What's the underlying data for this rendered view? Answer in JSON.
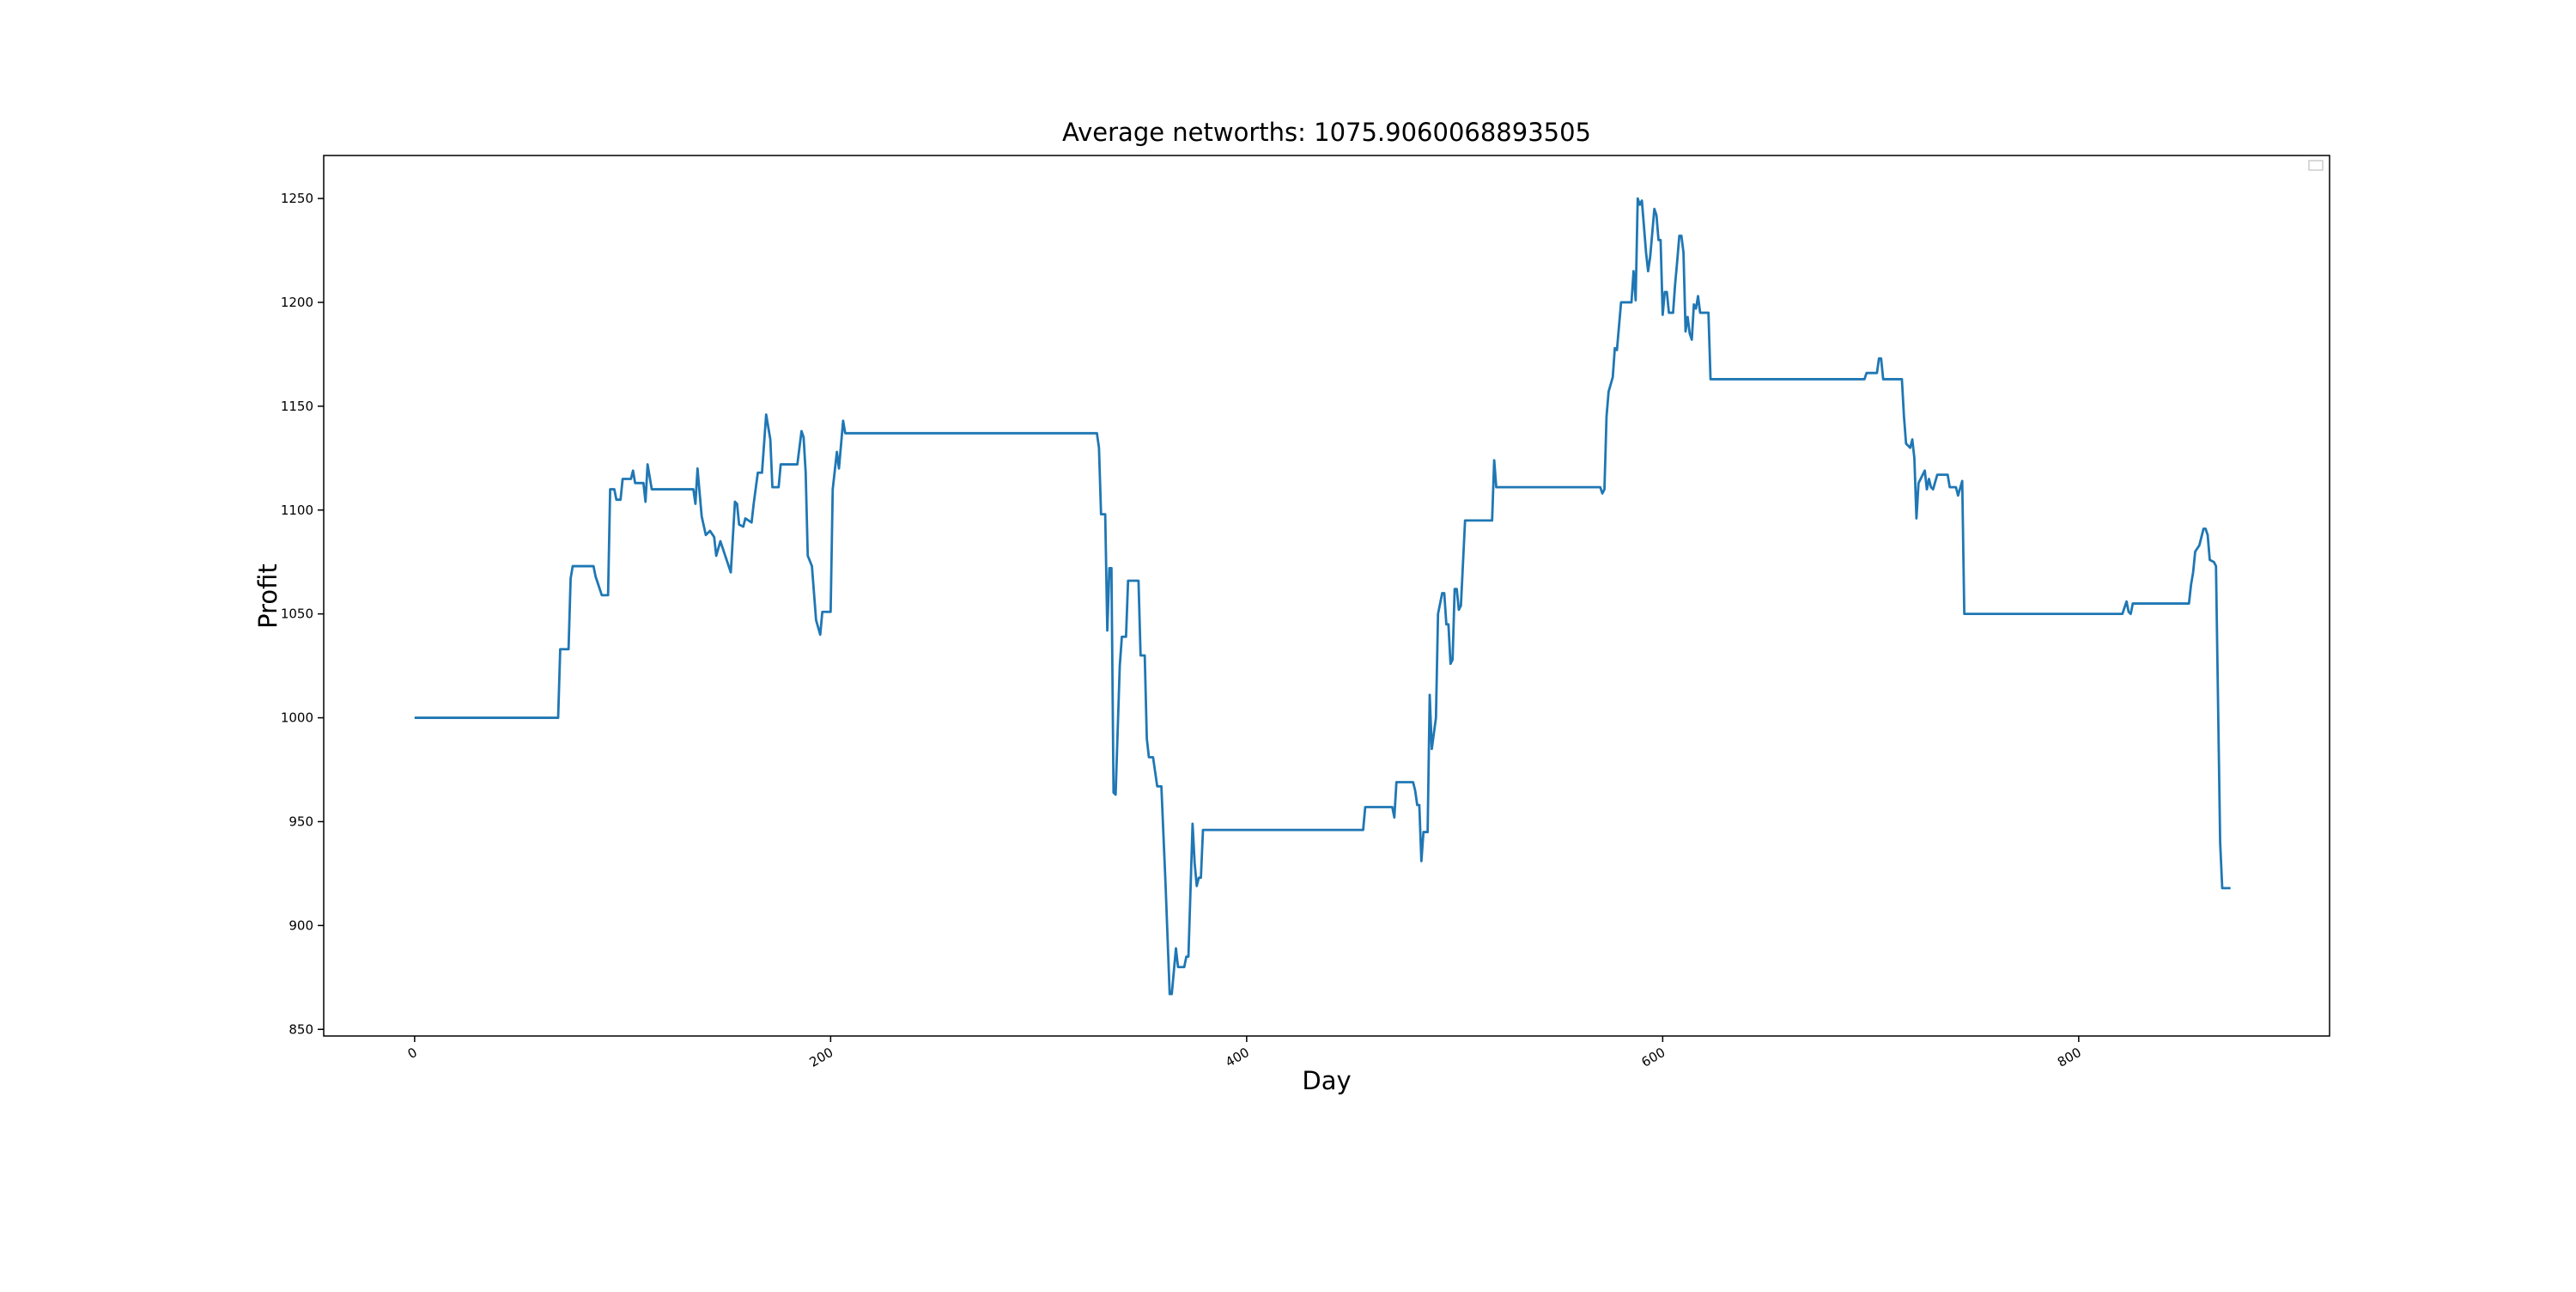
{
  "chart_data": {
    "type": "line",
    "title": "Average networths: 1075.9060068893505",
    "xlabel": "Day",
    "ylabel": "Profit",
    "color": "#1f77b4",
    "xlim": [
      -43.7,
      920.6
    ],
    "xticks": [
      0,
      200,
      400,
      600,
      800
    ],
    "ylim": [
      846.8,
      1270.7
    ],
    "yticks": [
      850,
      900,
      950,
      1000,
      1050,
      1100,
      1150,
      1200,
      1250
    ],
    "x": [
      0,
      69,
      70,
      74,
      75,
      76,
      86,
      87,
      90,
      93,
      94,
      96,
      97,
      99,
      100,
      104,
      105,
      106,
      110,
      111,
      112,
      114,
      134,
      135,
      136,
      138,
      140,
      142,
      144,
      145,
      147,
      150,
      152,
      154,
      155,
      156,
      158,
      159,
      162,
      163,
      165,
      167,
      169,
      171,
      172,
      175,
      176,
      184,
      186,
      187,
      188,
      189,
      191,
      193,
      195,
      196,
      200,
      201,
      203,
      204,
      206,
      207,
      328,
      329,
      330,
      332,
      333,
      334,
      335,
      336,
      337,
      339,
      340,
      342,
      343,
      348,
      349,
      351,
      352,
      353,
      355,
      357,
      359,
      361,
      363,
      364,
      366,
      367,
      370,
      371,
      372,
      374,
      375,
      376,
      377,
      378,
      379,
      456,
      457,
      470,
      471,
      472,
      480,
      481,
      482,
      483,
      484,
      485,
      487,
      488,
      489,
      491,
      492,
      494,
      495,
      496,
      497,
      498,
      499,
      500,
      501,
      502,
      503,
      505,
      518,
      519,
      520,
      570,
      571,
      572,
      573,
      574,
      576,
      577,
      578,
      580,
      585,
      586,
      587,
      588,
      589,
      590,
      592,
      593,
      594,
      596,
      597,
      598,
      599,
      600,
      601,
      602,
      603,
      605,
      606,
      607,
      608,
      609,
      610,
      611,
      612,
      613,
      614,
      615,
      616,
      617,
      618,
      622,
      623,
      697,
      698,
      703,
      704,
      705,
      706,
      715,
      716,
      717,
      719,
      720,
      721,
      722,
      723,
      725,
      726,
      727,
      728,
      729,
      730,
      732,
      737,
      738,
      741,
      742,
      744,
      745,
      821,
      823,
      824,
      825,
      826,
      853,
      854,
      855,
      856,
      858,
      860,
      861,
      862,
      863,
      865,
      866,
      868,
      869,
      873
    ],
    "values": [
      1000,
      1000,
      1033,
      1033,
      1067,
      1073,
      1073,
      1068,
      1059,
      1059,
      1110,
      1110,
      1105,
      1105,
      1115,
      1115,
      1119,
      1113,
      1113,
      1104,
      1122,
      1110,
      1110,
      1103,
      1120,
      1097,
      1088,
      1090,
      1087,
      1078,
      1085,
      1076,
      1070,
      1104,
      1103,
      1093,
      1092,
      1096,
      1094,
      1103,
      1118,
      1118,
      1146,
      1134,
      1111,
      1111,
      1122,
      1122,
      1138,
      1135,
      1118,
      1078,
      1073,
      1047,
      1040,
      1051,
      1051,
      1110,
      1128,
      1120,
      1143,
      1137,
      1137,
      1130,
      1098,
      1098,
      1042,
      1072,
      1072,
      964,
      963,
      1025,
      1039,
      1039,
      1066,
      1066,
      1030,
      1030,
      990,
      981,
      981,
      967,
      967,
      920,
      867,
      867,
      889,
      880,
      880,
      885,
      885,
      949,
      930,
      919,
      923,
      923,
      946,
      946,
      957,
      957,
      952,
      969,
      969,
      965,
      958,
      958,
      931,
      945,
      945,
      1011,
      985,
      1000,
      1050,
      1060,
      1060,
      1045,
      1045,
      1026,
      1028,
      1062,
      1062,
      1052,
      1054,
      1095,
      1095,
      1124,
      1111,
      1111,
      1108,
      1110,
      1145,
      1157,
      1164,
      1178,
      1177,
      1200,
      1200,
      1215,
      1201,
      1250,
      1247,
      1249,
      1224,
      1215,
      1222,
      1245,
      1242,
      1230,
      1230,
      1194,
      1205,
      1205,
      1195,
      1195,
      1209,
      1220,
      1232,
      1232,
      1224,
      1186,
      1193,
      1185,
      1182,
      1199,
      1197,
      1203,
      1195,
      1195,
      1163,
      1163,
      1166,
      1166,
      1173,
      1173,
      1163,
      1163,
      1145,
      1132,
      1130,
      1134,
      1125,
      1096,
      1113,
      1117,
      1119,
      1110,
      1115,
      1111,
      1110,
      1117,
      1117,
      1111,
      1111,
      1107,
      1114,
      1050,
      1050,
      1056,
      1051,
      1050,
      1055,
      1055,
      1064,
      1070,
      1080,
      1083,
      1091,
      1091,
      1088,
      1076,
      1075,
      1073,
      940,
      918,
      918
    ]
  }
}
